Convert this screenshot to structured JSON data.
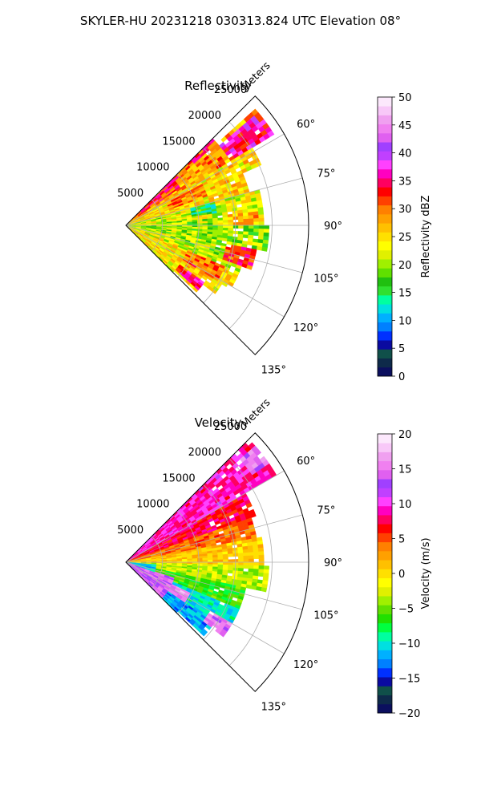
{
  "figure": {
    "suptitle": "SKYLER-HU  20231218  030313.824 UTC Elevation 08°"
  },
  "chart_data": [
    {
      "type": "heatmap",
      "subtype": "polar-sector",
      "title": "Reflectivity",
      "r_label": "Meters",
      "r_ticks": [
        5000,
        10000,
        15000,
        20000,
        25000
      ],
      "r_tick_labels": [
        "5000",
        "10000",
        "15000",
        "20000",
        "25000"
      ],
      "r_max": 25000,
      "theta_min": 45,
      "theta_max": 135,
      "theta_ticks": [
        60,
        75,
        90,
        105,
        120,
        135
      ],
      "theta_tick_labels": [
        "60°",
        "75°",
        "90°",
        "105°",
        "120°",
        "135°"
      ],
      "grid": true,
      "colorbar": {
        "label": "Reflectivity dBZ",
        "vmin": 0,
        "vmax": 50,
        "ticks": [
          0,
          5,
          10,
          15,
          20,
          25,
          30,
          35,
          40,
          45,
          50
        ],
        "tick_labels": [
          "0",
          "5",
          "10",
          "15",
          "20",
          "25",
          "30",
          "35",
          "40",
          "45",
          "50"
        ],
        "colors": [
          "#0b0f5e",
          "#0e2a4a",
          "#10504a",
          "#0a0aa0",
          "#0030ff",
          "#0080ff",
          "#00b0ff",
          "#00e0e0",
          "#00ffa0",
          "#30e030",
          "#20c010",
          "#60e000",
          "#a0f000",
          "#e0f000",
          "#ffff00",
          "#ffe000",
          "#ffc000",
          "#ffa000",
          "#ff8000",
          "#ff4000",
          "#ff0000",
          "#ff0060",
          "#ff00c0",
          "#ff40ff",
          "#c040ff",
          "#a040ff",
          "#e060f0",
          "#f080f0",
          "#f0a0f0",
          "#f8c8f8",
          "#fce8fc"
        ]
      },
      "features": [
        {
          "az_from": 45,
          "az_to": 48,
          "r_from": 0,
          "r_to": 17000,
          "value": 32
        },
        {
          "az_from": 48,
          "az_to": 58,
          "r_from": 0,
          "r_to": 24000,
          "value": 28
        },
        {
          "az_from": 58,
          "az_to": 66,
          "r_from": 0,
          "r_to": 20000,
          "value": 25
        },
        {
          "az_from": 66,
          "az_to": 75,
          "r_from": 0,
          "r_to": 17500,
          "value": 25
        },
        {
          "az_from": 75,
          "az_to": 90,
          "r_from": 0,
          "r_to": 19000,
          "value": 22
        },
        {
          "az_from": 90,
          "az_to": 100,
          "r_from": 0,
          "r_to": 19500,
          "value": 20
        },
        {
          "az_from": 100,
          "az_to": 112,
          "r_from": 0,
          "r_to": 17000,
          "value": 22
        },
        {
          "az_from": 112,
          "az_to": 122,
          "r_from": 0,
          "r_to": 16500,
          "value": 24
        },
        {
          "az_from": 122,
          "az_to": 128,
          "r_from": 0,
          "r_to": 15500,
          "value": 25
        },
        {
          "az_from": 128,
          "az_to": 133,
          "r_from": 0,
          "r_to": 13500,
          "value": 24
        },
        {
          "az_from": 133,
          "az_to": 135,
          "r_from": 0,
          "r_to": 9000,
          "value": 22
        },
        {
          "az_from": 50,
          "az_to": 58,
          "r_from": 17000,
          "r_to": 23500,
          "value": 35
        },
        {
          "az_from": 46,
          "az_to": 55,
          "r_from": 2000,
          "r_to": 9000,
          "value": 33
        },
        {
          "az_from": 62,
          "az_to": 70,
          "r_from": 6000,
          "r_to": 12000,
          "value": 30
        },
        {
          "az_from": 75,
          "az_to": 82,
          "r_from": 9000,
          "r_to": 12500,
          "value": 15
        },
        {
          "az_from": 85,
          "az_to": 108,
          "r_from": 6000,
          "r_to": 14000,
          "value": 20
        },
        {
          "az_from": 100,
          "az_to": 110,
          "r_from": 14000,
          "r_to": 18000,
          "value": 32
        },
        {
          "az_from": 112,
          "az_to": 122,
          "r_from": 9000,
          "r_to": 15000,
          "value": 30
        },
        {
          "az_from": 126,
          "az_to": 132,
          "r_from": 9000,
          "r_to": 13000,
          "value": 34
        },
        {
          "az_from": 92,
          "az_to": 100,
          "r_from": 0,
          "r_to": 5000,
          "value": 20
        },
        {
          "az_from": 84,
          "az_to": 90,
          "r_from": 14000,
          "r_to": 18000,
          "value": 27
        }
      ]
    },
    {
      "type": "heatmap",
      "subtype": "polar-sector",
      "title": "Velocity",
      "r_label": "Meters",
      "r_ticks": [
        5000,
        10000,
        15000,
        20000,
        25000
      ],
      "r_tick_labels": [
        "5000",
        "10000",
        "15000",
        "20000",
        "25000"
      ],
      "r_max": 25000,
      "theta_min": 45,
      "theta_max": 135,
      "theta_ticks": [
        60,
        75,
        90,
        105,
        120,
        135
      ],
      "theta_tick_labels": [
        "60°",
        "75°",
        "90°",
        "105°",
        "120°",
        "135°"
      ],
      "grid": true,
      "colorbar": {
        "label": "Velocity (m/s)",
        "vmin": -20,
        "vmax": 20,
        "ticks": [
          -20,
          -15,
          -10,
          -5,
          0,
          5,
          10,
          15,
          20
        ],
        "tick_labels": [
          "−20",
          "−15",
          "−10",
          "−5",
          "0",
          "5",
          "10",
          "15",
          "20"
        ],
        "colors": [
          "#0b0f5e",
          "#0e2a4a",
          "#10504a",
          "#0a0aa0",
          "#0030ff",
          "#0080ff",
          "#00b0ff",
          "#00e0e0",
          "#00ffa0",
          "#00ff40",
          "#20e000",
          "#60e000",
          "#a0f000",
          "#e0f000",
          "#ffff00",
          "#ffe000",
          "#ffc000",
          "#ffa000",
          "#ff8000",
          "#ff4000",
          "#ff0000",
          "#ff0060",
          "#ff00c0",
          "#ff40ff",
          "#c040ff",
          "#a040ff",
          "#e060f0",
          "#f080f0",
          "#f0a0f0",
          "#f8c8f8",
          "#fce8fc"
        ]
      },
      "features": [
        {
          "az_from": 45,
          "az_to": 60,
          "r_from": 0,
          "r_to": 24000,
          "value": 9
        },
        {
          "az_from": 60,
          "az_to": 70,
          "r_from": 0,
          "r_to": 19000,
          "value": 7
        },
        {
          "az_from": 70,
          "az_to": 80,
          "r_from": 0,
          "r_to": 18000,
          "value": 4
        },
        {
          "az_from": 80,
          "az_to": 92,
          "r_from": 0,
          "r_to": 19000,
          "value": 1
        },
        {
          "az_from": 92,
          "az_to": 102,
          "r_from": 0,
          "r_to": 19500,
          "value": -3
        },
        {
          "az_from": 102,
          "az_to": 112,
          "r_from": 0,
          "r_to": 17000,
          "value": -6
        },
        {
          "az_from": 112,
          "az_to": 124,
          "r_from": 0,
          "r_to": 16500,
          "value": -10
        },
        {
          "az_from": 124,
          "az_to": 133,
          "r_from": 0,
          "r_to": 15000,
          "value": -12
        },
        {
          "az_from": 133,
          "az_to": 135,
          "r_from": 0,
          "r_to": 10000,
          "value": -11
        },
        {
          "az_from": 48,
          "az_to": 56,
          "r_from": 21000,
          "r_to": 24000,
          "value": 15
        },
        {
          "az_from": 108,
          "az_to": 135,
          "r_from": 0,
          "r_to": 7000,
          "value": 14
        },
        {
          "az_from": 115,
          "az_to": 125,
          "r_from": 7000,
          "r_to": 10000,
          "value": 16
        },
        {
          "az_from": 120,
          "az_to": 128,
          "r_from": 13500,
          "r_to": 16500,
          "value": 15
        },
        {
          "az_from": 95,
          "az_to": 110,
          "r_from": 0,
          "r_to": 4000,
          "value": -11
        }
      ]
    }
  ]
}
